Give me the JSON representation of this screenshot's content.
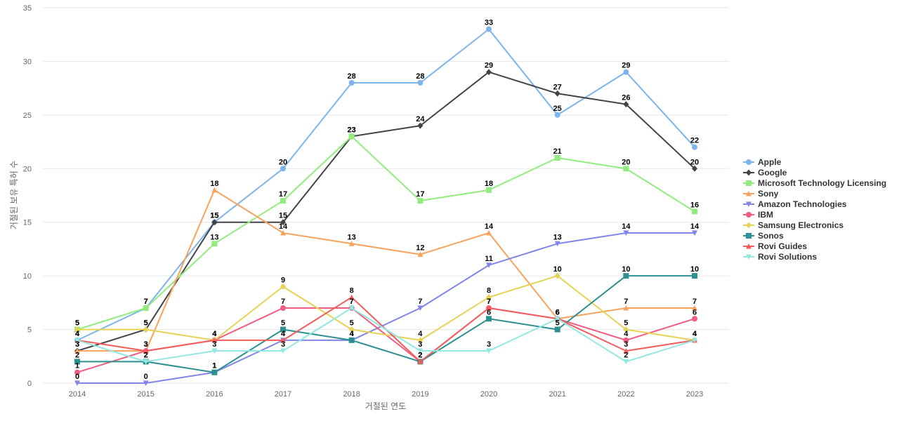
{
  "chart_data": {
    "type": "line",
    "title": "",
    "xlabel": "거절된 연도",
    "ylabel": "거절된 보유 특허 수",
    "ylim": [
      0,
      35
    ],
    "yticks": [
      0,
      5,
      10,
      15,
      20,
      25,
      30,
      35
    ],
    "x": [
      "2014",
      "2015",
      "2016",
      "2017",
      "2018",
      "2019",
      "2020",
      "2021",
      "2022",
      "2023"
    ],
    "grid": true,
    "legend_position": "right",
    "series": [
      {
        "name": "Apple",
        "color": "#7cb5ec",
        "marker": "circle",
        "values": [
          4,
          7,
          15,
          20,
          28,
          28,
          33,
          25,
          29,
          22
        ]
      },
      {
        "name": "Google",
        "color": "#434348",
        "marker": "diamond",
        "values": [
          3,
          5,
          15,
          15,
          23,
          24,
          29,
          27,
          26,
          20
        ]
      },
      {
        "name": "Microsoft Technology Licensing",
        "color": "#90ed7d",
        "marker": "square",
        "values": [
          5,
          7,
          13,
          17,
          23,
          17,
          18,
          21,
          20,
          16
        ]
      },
      {
        "name": "Sony",
        "color": "#f7a35c",
        "marker": "triangle",
        "values": [
          3,
          3,
          18,
          14,
          13,
          12,
          14,
          6,
          7,
          7
        ]
      },
      {
        "name": "Amazon Technologies",
        "color": "#8085e9",
        "marker": "triangle-down",
        "values": [
          0,
          0,
          1,
          4,
          4,
          7,
          11,
          13,
          14,
          14
        ]
      },
      {
        "name": "IBM",
        "color": "#f15c80",
        "marker": "circle",
        "values": [
          1,
          3,
          4,
          7,
          7,
          2,
          7,
          6,
          4,
          6
        ]
      },
      {
        "name": "Samsung Electronics",
        "color": "#e4d354",
        "marker": "diamond",
        "values": [
          5,
          5,
          4,
          9,
          5,
          4,
          8,
          10,
          5,
          4
        ]
      },
      {
        "name": "Sonos",
        "color": "#2b908f",
        "marker": "square",
        "values": [
          2,
          2,
          1,
          5,
          4,
          2,
          6,
          5,
          10,
          10
        ]
      },
      {
        "name": "Rovi Guides",
        "color": "#f45b5b",
        "marker": "triangle",
        "values": [
          4,
          3,
          4,
          4,
          8,
          2,
          7,
          6,
          3,
          4
        ]
      },
      {
        "name": "Rovi Solutions",
        "color": "#91e8e1",
        "marker": "triangle-down",
        "values": [
          4,
          2,
          3,
          3,
          7,
          3,
          3,
          6,
          2,
          4
        ]
      }
    ],
    "data_labels": [
      {
        "series": "Apple",
        "values": [
          4,
          7,
          15,
          20,
          28,
          28,
          33,
          25,
          29,
          22
        ]
      },
      {
        "series": "Google",
        "values": [
          3,
          5,
          15,
          15,
          23,
          24,
          29,
          27,
          26,
          20
        ]
      },
      {
        "series": "Microsoft Technology Licensing",
        "values": [
          5,
          7,
          13,
          17,
          23,
          17,
          18,
          21,
          20,
          16
        ]
      },
      {
        "series": "Sony",
        "values": [
          3,
          3,
          18,
          14,
          13,
          12,
          14,
          6,
          7,
          7
        ]
      },
      {
        "series": "Amazon Technologies",
        "values": [
          0,
          0,
          1,
          4,
          4,
          7,
          11,
          13,
          14,
          14
        ]
      },
      {
        "series": "IBM",
        "values": [
          1,
          3,
          4,
          7,
          7,
          2,
          7,
          6,
          4,
          6
        ]
      },
      {
        "series": "Samsung Electronics",
        "values": [
          5,
          5,
          4,
          9,
          5,
          4,
          8,
          10,
          5,
          4
        ]
      },
      {
        "series": "Sonos",
        "values": [
          2,
          2,
          1,
          5,
          4,
          2,
          6,
          5,
          10,
          10
        ]
      },
      {
        "series": "Rovi Guides",
        "values": [
          4,
          3,
          4,
          4,
          8,
          2,
          7,
          6,
          3,
          4
        ]
      },
      {
        "series": "Rovi Solutions",
        "values": [
          4,
          2,
          3,
          3,
          7,
          3,
          3,
          6,
          2,
          4
        ]
      }
    ]
  }
}
